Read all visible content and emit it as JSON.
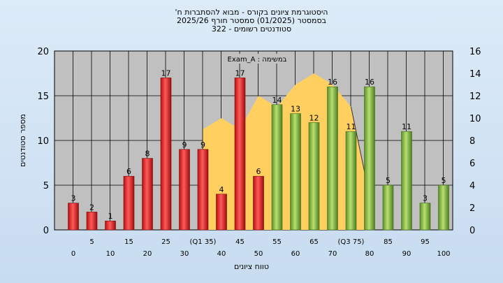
{
  "title": {
    "line1": "'היסטוגרמת ציונים בקורס - מבוא להסתברות ח",
    "line2": "בסמסטר  (01/2025)  סמסטר חורף  2025/26",
    "line3": "סטודנטים רשומים - 322"
  },
  "colors": {
    "low": "#d62020",
    "high": "#7db13c",
    "area": "#ffd060",
    "plot_bg": "#c0c0c0"
  },
  "chart_data": {
    "type": "bar",
    "annotation": "Exam_A : במשימה",
    "xlabel": "טווח ציונים",
    "ylabel": "מספר סטודנטים",
    "ylim": [
      0,
      20
    ],
    "y2lim": [
      0,
      16
    ],
    "yticks": [
      0,
      5,
      10,
      15,
      20
    ],
    "y2ticks": [
      0,
      2,
      4,
      6,
      8,
      10,
      12,
      14,
      16
    ],
    "grid": true,
    "categories": [
      "0",
      "5",
      "10",
      "15",
      "20",
      "25",
      "30",
      "35",
      "40",
      "45",
      "50",
      "55",
      "60",
      "65",
      "70",
      "75",
      "80",
      "85",
      "90",
      "95",
      "100"
    ],
    "tick_labels_row1": [
      "5",
      "15",
      "25",
      "(Q1 35)",
      "45",
      "55",
      "65",
      "(Q3 75)",
      "85",
      "95"
    ],
    "tick_labels_row2": [
      "0",
      "10",
      "20",
      "30",
      "40",
      "50",
      "60",
      "70",
      "80",
      "90",
      "100"
    ],
    "values": [
      3,
      2,
      1,
      6,
      8,
      17,
      9,
      9,
      4,
      17,
      6,
      14,
      13,
      12,
      16,
      11,
      16,
      5,
      11,
      3,
      5
    ],
    "bar_colors_split_index": 11,
    "area_series": {
      "x": [
        "35",
        "40",
        "45",
        "50",
        "55",
        "60",
        "65",
        "70",
        "75",
        "80"
      ],
      "values": [
        9,
        10,
        9,
        12,
        11,
        13,
        14,
        13,
        11,
        3
      ]
    }
  }
}
